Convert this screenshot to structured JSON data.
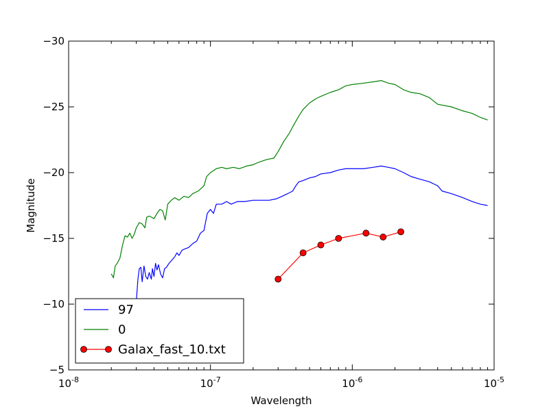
{
  "chart_data": {
    "type": "line",
    "xlabel": "Wavelength",
    "ylabel": "Magnitude",
    "xscale": "log",
    "xlim": [
      1e-08,
      1e-05
    ],
    "ylim": [
      -5,
      -30
    ],
    "y_inverted": true,
    "grid": false,
    "legend_placement": "lower-left",
    "x_ticks": [
      {
        "value": 1e-08,
        "base": "10",
        "exp": "-8"
      },
      {
        "value": 1e-07,
        "base": "10",
        "exp": "-7"
      },
      {
        "value": 1e-06,
        "base": "10",
        "exp": "-6"
      },
      {
        "value": 1e-05,
        "base": "10",
        "exp": "-5"
      }
    ],
    "y_ticks": [
      {
        "value": -30,
        "label": "−30"
      },
      {
        "value": -25,
        "label": "−25"
      },
      {
        "value": -20,
        "label": "−20"
      },
      {
        "value": -15,
        "label": "−15"
      },
      {
        "value": -10,
        "label": "−10"
      },
      {
        "value": -5,
        "label": "−5"
      }
    ],
    "series": [
      {
        "name": "97",
        "color": "#0000ff",
        "marker": "none",
        "points": [
          [
            2.67e-08,
            -7.6
          ],
          [
            2.73e-08,
            -8.6
          ],
          [
            2.78e-08,
            -9.3
          ],
          [
            2.83e-08,
            -10.0
          ],
          [
            2.9e-08,
            -10.3
          ],
          [
            3e-08,
            -10.2
          ],
          [
            3.08e-08,
            -11.9
          ],
          [
            3.15e-08,
            -12.7
          ],
          [
            3.23e-08,
            -12.8
          ],
          [
            3.3e-08,
            -11.7
          ],
          [
            3.4e-08,
            -12.9
          ],
          [
            3.5e-08,
            -12.1
          ],
          [
            3.6e-08,
            -11.9
          ],
          [
            3.7e-08,
            -12.4
          ],
          [
            3.83e-08,
            -11.9
          ],
          [
            3.9e-08,
            -12.7
          ],
          [
            4e-08,
            -12.1
          ],
          [
            4.1e-08,
            -13.1
          ],
          [
            4.2e-08,
            -12.6
          ],
          [
            4.3e-08,
            -13.0
          ],
          [
            4.45e-08,
            -12.3
          ],
          [
            4.6e-08,
            -12.0
          ],
          [
            4.75e-08,
            -12.7
          ],
          [
            4.9e-08,
            -12.8
          ],
          [
            5.1e-08,
            -13.1
          ],
          [
            5.3e-08,
            -13.3
          ],
          [
            5.6e-08,
            -13.6
          ],
          [
            5.8e-08,
            -13.9
          ],
          [
            6e-08,
            -13.7
          ],
          [
            6.3e-08,
            -14.1
          ],
          [
            6.6e-08,
            -14.2
          ],
          [
            7e-08,
            -14.3
          ],
          [
            7.5e-08,
            -14.6
          ],
          [
            8e-08,
            -14.8
          ],
          [
            8.5e-08,
            -15.4
          ],
          [
            9e-08,
            -15.6
          ],
          [
            9.5e-08,
            -16.9
          ],
          [
            1e-07,
            -17.2
          ],
          [
            1.05e-07,
            -16.9
          ],
          [
            1.1e-07,
            -17.6
          ],
          [
            1.2e-07,
            -17.6
          ],
          [
            1.3e-07,
            -17.8
          ],
          [
            1.4e-07,
            -17.6
          ],
          [
            1.55e-07,
            -17.8
          ],
          [
            1.75e-07,
            -17.8
          ],
          [
            2e-07,
            -17.9
          ],
          [
            2.3e-07,
            -17.9
          ],
          [
            2.6e-07,
            -17.9
          ],
          [
            2.9e-07,
            -18.0
          ],
          [
            3.2e-07,
            -18.2
          ],
          [
            3.5e-07,
            -18.4
          ],
          [
            3.8e-07,
            -18.6
          ],
          [
            4e-07,
            -19.0
          ],
          [
            4.2e-07,
            -19.3
          ],
          [
            4.5e-07,
            -19.4
          ],
          [
            5e-07,
            -19.6
          ],
          [
            5.5e-07,
            -19.7
          ],
          [
            6e-07,
            -19.9
          ],
          [
            7e-07,
            -20.0
          ],
          [
            8e-07,
            -20.2
          ],
          [
            9e-07,
            -20.3
          ],
          [
            1e-06,
            -20.3
          ],
          [
            1.2e-06,
            -20.3
          ],
          [
            1.4e-06,
            -20.4
          ],
          [
            1.6e-06,
            -20.5
          ],
          [
            1.8e-06,
            -20.4
          ],
          [
            2e-06,
            -20.3
          ],
          [
            2.3e-06,
            -20.0
          ],
          [
            2.6e-06,
            -19.7
          ],
          [
            3e-06,
            -19.5
          ],
          [
            3.5e-06,
            -19.3
          ],
          [
            4e-06,
            -19.0
          ],
          [
            4.3e-06,
            -18.6
          ],
          [
            5e-06,
            -18.4
          ],
          [
            6e-06,
            -18.1
          ],
          [
            7e-06,
            -17.8
          ],
          [
            8e-06,
            -17.6
          ],
          [
            9e-06,
            -17.5
          ]
        ]
      },
      {
        "name": "0",
        "color": "#008000",
        "marker": "none",
        "points": [
          [
            2e-08,
            -12.3
          ],
          [
            2.07e-08,
            -12.0
          ],
          [
            2.13e-08,
            -12.9
          ],
          [
            2.2e-08,
            -13.1
          ],
          [
            2.3e-08,
            -13.5
          ],
          [
            2.4e-08,
            -14.5
          ],
          [
            2.5e-08,
            -15.2
          ],
          [
            2.6e-08,
            -15.1
          ],
          [
            2.7e-08,
            -15.4
          ],
          [
            2.8e-08,
            -15.0
          ],
          [
            2.9e-08,
            -15.3
          ],
          [
            3e-08,
            -15.8
          ],
          [
            3.15e-08,
            -16.2
          ],
          [
            3.3e-08,
            -16.1
          ],
          [
            3.45e-08,
            -15.8
          ],
          [
            3.55e-08,
            -16.6
          ],
          [
            3.7e-08,
            -16.7
          ],
          [
            3.85e-08,
            -16.6
          ],
          [
            4e-08,
            -16.5
          ],
          [
            4.2e-08,
            -16.9
          ],
          [
            4.4e-08,
            -17.2
          ],
          [
            4.6e-08,
            -17.1
          ],
          [
            4.8e-08,
            -16.4
          ],
          [
            5e-08,
            -17.6
          ],
          [
            5.3e-08,
            -17.9
          ],
          [
            5.6e-08,
            -18.1
          ],
          [
            6e-08,
            -17.9
          ],
          [
            6.5e-08,
            -18.2
          ],
          [
            7e-08,
            -18.1
          ],
          [
            7.5e-08,
            -18.4
          ],
          [
            8.2e-08,
            -18.6
          ],
          [
            9e-08,
            -19.0
          ],
          [
            9.4e-08,
            -19.7
          ],
          [
            1e-07,
            -20.0
          ],
          [
            1.1e-07,
            -20.3
          ],
          [
            1.2e-07,
            -20.4
          ],
          [
            1.3e-07,
            -20.3
          ],
          [
            1.45e-07,
            -20.4
          ],
          [
            1.6e-07,
            -20.3
          ],
          [
            1.8e-07,
            -20.5
          ],
          [
            2e-07,
            -20.6
          ],
          [
            2.2e-07,
            -20.8
          ],
          [
            2.5e-07,
            -21.0
          ],
          [
            2.8e-07,
            -21.1
          ],
          [
            3e-07,
            -21.6
          ],
          [
            3.3e-07,
            -22.4
          ],
          [
            3.6e-07,
            -23.0
          ],
          [
            3.9e-07,
            -23.7
          ],
          [
            4.2e-07,
            -24.3
          ],
          [
            4.5e-07,
            -24.8
          ],
          [
            5e-07,
            -25.3
          ],
          [
            5.5e-07,
            -25.6
          ],
          [
            6e-07,
            -25.8
          ],
          [
            7e-07,
            -26.1
          ],
          [
            8e-07,
            -26.3
          ],
          [
            9e-07,
            -26.6
          ],
          [
            1e-06,
            -26.7
          ],
          [
            1.2e-06,
            -26.8
          ],
          [
            1.4e-06,
            -26.9
          ],
          [
            1.6e-06,
            -27.0
          ],
          [
            1.8e-06,
            -26.8
          ],
          [
            2e-06,
            -26.7
          ],
          [
            2.3e-06,
            -26.3
          ],
          [
            2.6e-06,
            -26.1
          ],
          [
            3e-06,
            -26.0
          ],
          [
            3.5e-06,
            -25.7
          ],
          [
            4e-06,
            -25.2
          ],
          [
            5e-06,
            -25.0
          ],
          [
            6e-06,
            -24.7
          ],
          [
            7e-06,
            -24.5
          ],
          [
            8e-06,
            -24.2
          ],
          [
            9e-06,
            -24.0
          ]
        ]
      },
      {
        "name": "Galax_fast_10.txt",
        "color": "#ff0000",
        "marker": "circle",
        "points": [
          [
            3e-07,
            -11.9
          ],
          [
            4.5e-07,
            -13.9
          ],
          [
            6e-07,
            -14.5
          ],
          [
            8e-07,
            -15.0
          ],
          [
            1.25e-06,
            -15.4
          ],
          [
            1.65e-06,
            -15.1
          ],
          [
            2.2e-06,
            -15.5
          ]
        ]
      }
    ]
  }
}
